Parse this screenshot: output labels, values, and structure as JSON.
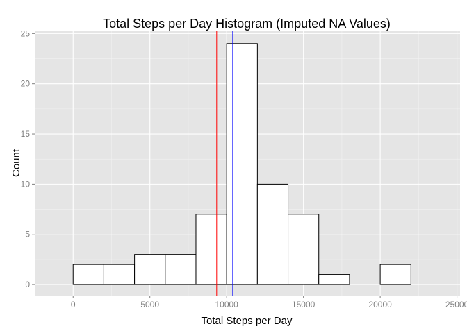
{
  "chart_data": {
    "type": "bar",
    "title": "Total Steps per Day Histogram (Imputed NA Values)",
    "xlabel": "Total Steps per Day",
    "ylabel": "Count",
    "xlim": [
      -2500,
      25200
    ],
    "ylim": [
      -1.1,
      25.3
    ],
    "x_ticks": [
      0,
      5000,
      10000,
      15000,
      20000,
      25000
    ],
    "y_ticks": [
      0,
      5,
      10,
      15,
      20,
      25
    ],
    "x_tick_labels": [
      "0",
      "5000",
      "10000",
      "15000",
      "20000",
      "25000"
    ],
    "y_tick_labels": [
      "0",
      "5",
      "10",
      "15",
      "20",
      "25"
    ],
    "bin_width": 2000,
    "bins": [
      {
        "x_start": -2000,
        "x_end": 0,
        "count": 0
      },
      {
        "x_start": 0,
        "x_end": 2000,
        "count": 2
      },
      {
        "x_start": 2000,
        "x_end": 4000,
        "count": 2
      },
      {
        "x_start": 4000,
        "x_end": 6000,
        "count": 3
      },
      {
        "x_start": 6000,
        "x_end": 8000,
        "count": 3
      },
      {
        "x_start": 8000,
        "x_end": 10000,
        "count": 7
      },
      {
        "x_start": 10000,
        "x_end": 12000,
        "count": 24
      },
      {
        "x_start": 12000,
        "x_end": 14000,
        "count": 10
      },
      {
        "x_start": 14000,
        "x_end": 16000,
        "count": 7
      },
      {
        "x_start": 16000,
        "x_end": 18000,
        "count": 1
      },
      {
        "x_start": 18000,
        "x_end": 20000,
        "count": 0
      },
      {
        "x_start": 20000,
        "x_end": 22000,
        "count": 2
      },
      {
        "x_start": 22000,
        "x_end": 24000,
        "count": 0
      }
    ],
    "vlines": [
      {
        "x": 9350,
        "color": "#ff0000"
      },
      {
        "x": 10395,
        "color": "#0000ff"
      }
    ],
    "grid": true,
    "colors": {
      "panel_background": "#e5e5e5",
      "grid_major": "#ffffff",
      "grid_minor": "#f2f2f2",
      "bar_fill": "#ffffff",
      "bar_outline": "#000000",
      "tick_text": "#7f7f7f"
    }
  }
}
